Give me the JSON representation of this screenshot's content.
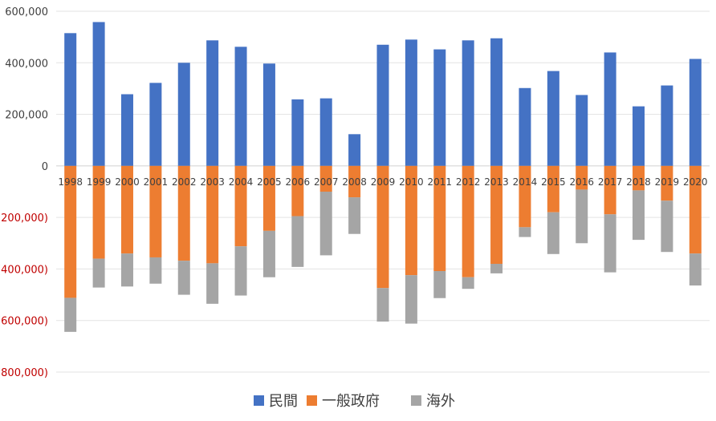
{
  "chart_data": {
    "type": "bar",
    "stacked": true,
    "categories": [
      "1998",
      "1999",
      "2000",
      "2001",
      "2002",
      "2003",
      "2004",
      "2005",
      "2006",
      "2007",
      "2008",
      "2009",
      "2010",
      "2011",
      "2012",
      "2013",
      "2014",
      "2015",
      "2016",
      "2017",
      "2018",
      "2019",
      "2020"
    ],
    "series": [
      {
        "name": "民間",
        "color": "#4472C4",
        "values": [
          515000,
          558000,
          278000,
          322000,
          400000,
          487000,
          462000,
          397000,
          258000,
          262000,
          123000,
          470000,
          490000,
          452000,
          487000,
          495000,
          302000,
          368000,
          275000,
          440000,
          231000,
          312000,
          415000
        ]
      },
      {
        "name": "一般政府",
        "color": "#ED7D31",
        "values": [
          -512000,
          -360000,
          -340000,
          -355000,
          -368000,
          -378000,
          -312000,
          -252000,
          -195000,
          -100000,
          -122000,
          -474000,
          -424000,
          -408000,
          -432000,
          -380000,
          -238000,
          -180000,
          -92000,
          -188000,
          -95000,
          -135000,
          -340000
        ]
      },
      {
        "name": "海外",
        "color": "#A5A5A5",
        "values": [
          -132000,
          -112000,
          -128000,
          -102000,
          -132000,
          -157000,
          -191000,
          -180000,
          -197000,
          -247000,
          -142000,
          -130000,
          -188000,
          -105000,
          -45000,
          -37000,
          -38000,
          -162000,
          -208000,
          -225000,
          -192000,
          -199000,
          -124000
        ]
      }
    ],
    "ylim": [
      -800000,
      600000
    ],
    "yticks": [
      600000,
      400000,
      200000,
      0,
      -200000,
      -400000,
      -600000,
      -800000
    ],
    "ytick_labels": [
      "600,000",
      "400,000",
      "200,000",
      "0",
      "(200,000)",
      "(400,000)",
      "(600,000)",
      "(800,000)"
    ],
    "negative_tick_color": "#C00000",
    "grid": true,
    "legend_position": "bottom"
  }
}
